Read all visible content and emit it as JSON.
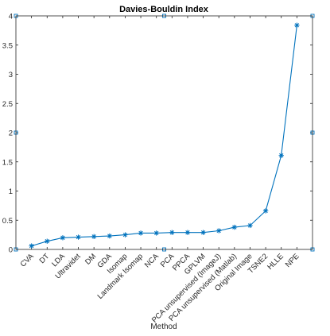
{
  "chart_data": {
    "type": "line",
    "title": "Davies-Bouldin Index",
    "xlabel": "Method",
    "ylabel": "",
    "ylim": [
      0,
      4
    ],
    "yticks": [
      "0",
      "0.5",
      "1",
      "1.5",
      "2",
      "2.5",
      "3",
      "3.5",
      "4"
    ],
    "grid": false,
    "marker": "asterisk",
    "line_color": "#0072bd",
    "categories": [
      "CVA",
      "DT",
      "LDA",
      "Ultravidet",
      "DM",
      "GDA",
      "Isomap",
      "Landmark Isomap",
      "NCA",
      "PCA",
      "PPCA",
      "GPLVM",
      "PCA unsupervised (ImageJ)",
      "PCA unsupervised (Matlab)",
      "Original Image",
      "TSNE2",
      "HLLE",
      "NPE"
    ],
    "series": [
      {
        "values": [
          0.06,
          0.14,
          0.2,
          0.21,
          0.22,
          0.23,
          0.25,
          0.28,
          0.28,
          0.29,
          0.29,
          0.29,
          0.32,
          0.38,
          0.41,
          0.66,
          1.61,
          3.84
        ]
      }
    ]
  }
}
